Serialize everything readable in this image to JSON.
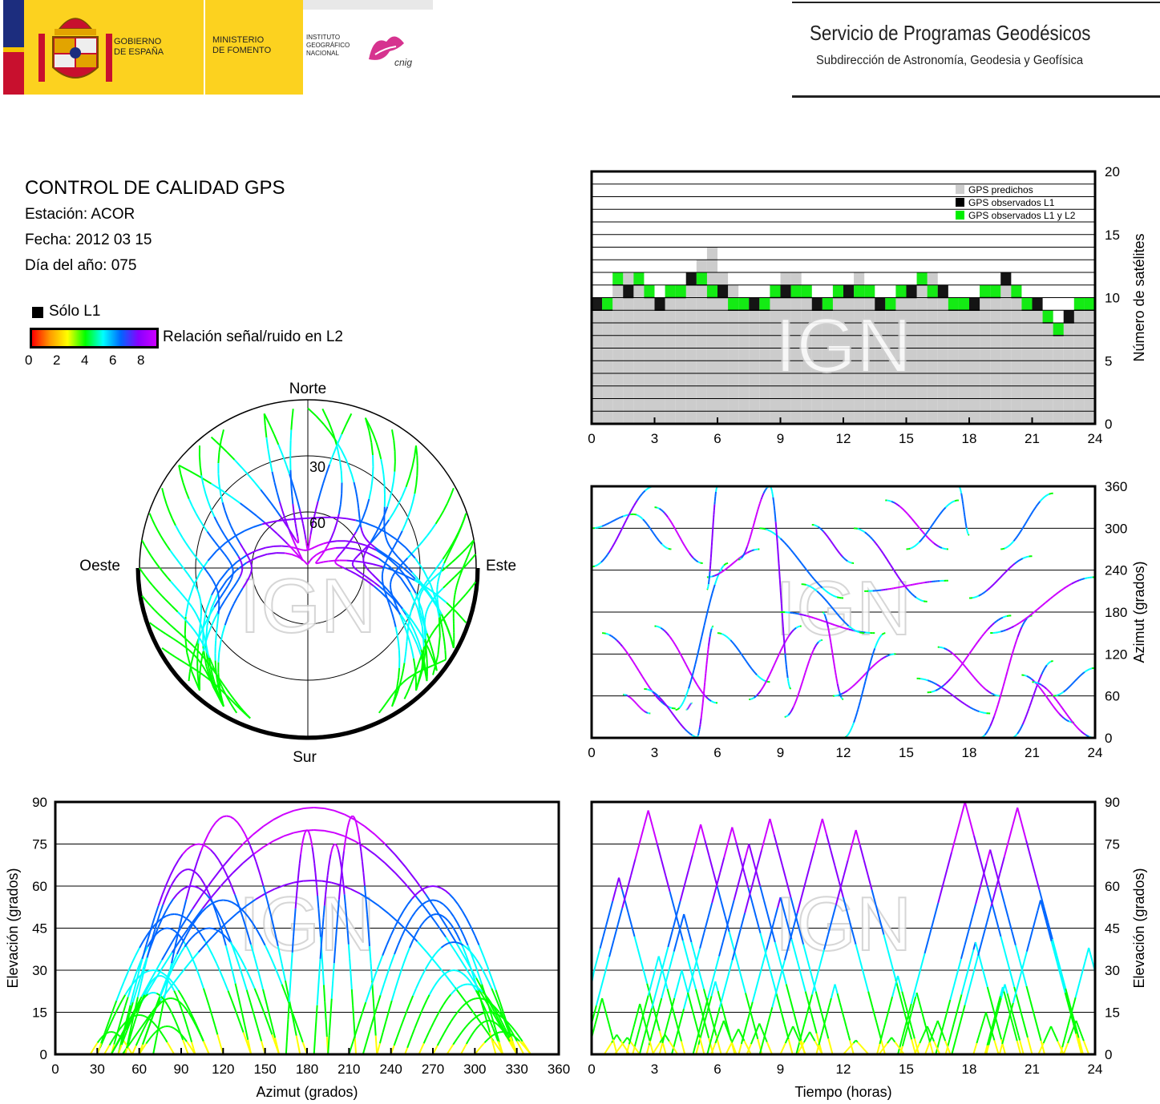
{
  "header": {
    "gov_line1": "GOBIERNO",
    "gov_line2": "DE ESPAÑA",
    "min_line1": "MINISTERIO",
    "min_line2": "DE FOMENTO",
    "ign_line1": "INSTITUTO",
    "ign_line2": "GEOGRÁFICO",
    "ign_line3": "NACIONAL",
    "cnig_logo_text": "cnig",
    "title": "Servicio de Programas Geodésicos",
    "subtitle": "Subdirección de Astronomía, Geodesia y Geofísica"
  },
  "info": {
    "title": "CONTROL DE CALIDAD GPS",
    "station": "Estación: ACOR",
    "date": "Fecha: 2012 03 15",
    "doy": "Día del año: 075"
  },
  "legend": {
    "only_l1": "Sólo L1",
    "snr_label": "Relación señal/ruido en L2",
    "snr_ticks": [
      "0",
      "2",
      "4",
      "6",
      "8"
    ],
    "snr_colors": [
      "#ff0000",
      "#ff9900",
      "#ffff00",
      "#00ff00",
      "#00ffff",
      "#0066ff",
      "#8800ff",
      "#cc00ff"
    ]
  },
  "watermark": "IGN",
  "chart_data": [
    {
      "type": "bar",
      "name": "satellite-count",
      "ylabel": "Número de satélites",
      "xlim": [
        0,
        24
      ],
      "ylim": [
        0,
        20
      ],
      "xticks": [
        "0",
        "3",
        "6",
        "9",
        "12",
        "15",
        "18",
        "21",
        "24"
      ],
      "yticks": [
        "0",
        "5",
        "10",
        "15",
        "20"
      ],
      "legend_position": "top-right",
      "legend": [
        "GPS predichos",
        "GPS observados L1",
        "GPS observados L1 y L2"
      ],
      "colors": {
        "predicted": "#cccccc",
        "l1": "#000000",
        "l1l2": "#00ee00"
      },
      "series": [
        {
          "name": "GPS predichos",
          "x": [
            0,
            0.5,
            1,
            1.5,
            2,
            2.5,
            3,
            3.5,
            4,
            4.5,
            5,
            5.5,
            6,
            6.5,
            7,
            7.5,
            8,
            8.5,
            9,
            9.5,
            10,
            10.5,
            11,
            11.5,
            12,
            12.5,
            13,
            13.5,
            14,
            14.5,
            15,
            15.5,
            16,
            16.5,
            17,
            17.5,
            18,
            18.5,
            19,
            19.5,
            20,
            20.5,
            21,
            21.5,
            22,
            22.5,
            23,
            23.5
          ],
          "values": [
            9,
            10,
            11,
            12,
            12,
            11,
            10,
            11,
            11,
            12,
            13,
            14,
            12,
            11,
            10,
            10,
            10,
            11,
            12,
            12,
            11,
            10,
            10,
            11,
            11,
            12,
            11,
            10,
            10,
            11,
            11,
            12,
            12,
            11,
            10,
            10,
            10,
            11,
            11,
            12,
            11,
            10,
            10,
            9,
            8,
            9,
            10,
            10
          ]
        },
        {
          "name": "GPS observados L1 y L2",
          "x": [
            0,
            0.5,
            1,
            1.5,
            2,
            2.5,
            3,
            3.5,
            4,
            4.5,
            5,
            5.5,
            6,
            6.5,
            7,
            7.5,
            8,
            8.5,
            9,
            9.5,
            10,
            10.5,
            11,
            11.5,
            12,
            12.5,
            13,
            13.5,
            14,
            14.5,
            15,
            15.5,
            16,
            16.5,
            17,
            17.5,
            18,
            18.5,
            19,
            19.5,
            20,
            20.5,
            21,
            21.5,
            22,
            22.5,
            23,
            23.5
          ],
          "values": [
            9,
            9,
            11,
            10,
            11,
            10,
            9,
            10,
            10,
            11,
            11,
            10,
            10,
            9,
            9,
            9,
            9,
            10,
            10,
            10,
            10,
            9,
            9,
            10,
            10,
            10,
            10,
            9,
            9,
            10,
            10,
            11,
            10,
            10,
            9,
            9,
            9,
            10,
            10,
            11,
            10,
            9,
            9,
            8,
            7,
            8,
            9,
            9
          ]
        }
      ]
    },
    {
      "type": "scatter",
      "name": "azimuth-vs-time",
      "ylabel": "Azimut (grados)",
      "xlim": [
        0,
        24
      ],
      "ylim": [
        0,
        360
      ],
      "xticks": [
        "0",
        "3",
        "6",
        "9",
        "12",
        "15",
        "18",
        "21",
        "24"
      ],
      "yticks": [
        "0",
        "60",
        "120",
        "180",
        "240",
        "300",
        "360"
      ],
      "series": [
        {
          "tracks": [
            [
              0,
              300,
              2,
              320
            ],
            [
              0,
              245,
              3,
              360
            ],
            [
              0.5,
              150,
              4,
              42
            ],
            [
              1.5,
              62,
              2.8,
              35
            ],
            [
              2,
              320,
              3.8,
              270
            ],
            [
              2.5,
              70,
              5.2,
              0
            ],
            [
              3,
              330,
              5.3,
              250
            ],
            [
              3,
              160,
              6,
              50
            ],
            [
              4,
              40,
              6.5,
              250
            ],
            [
              4.5,
              40,
              4.8,
              50
            ],
            [
              5,
              0,
              5.8,
              160
            ],
            [
              5.5,
              230,
              8,
              270
            ],
            [
              6,
              150,
              8.5,
              80
            ],
            [
              6,
              360,
              5.5,
              212
            ],
            [
              7,
              255,
              8.5,
              360
            ],
            [
              7.5,
              55,
              10,
              160
            ],
            [
              8,
              300,
              12,
              200
            ],
            [
              8.5,
              360,
              9.5,
              70
            ],
            [
              9,
              180,
              13.5,
              150
            ],
            [
              9.2,
              30,
              11,
              140
            ],
            [
              10,
              220,
              13,
              150
            ],
            [
              10.5,
              305,
              12.5,
              250
            ],
            [
              11,
              180,
              12,
              55
            ],
            [
              11.5,
              60,
              14.5,
              120
            ],
            [
              12,
              0,
              14,
              150
            ],
            [
              12.5,
              300,
              16,
              195
            ],
            [
              13,
              210,
              17,
              225
            ],
            [
              14,
              340,
              17,
              270
            ],
            [
              15,
              270,
              17.5,
              340
            ],
            [
              15.5,
              85,
              19,
              35
            ],
            [
              16,
              65,
              20,
              175
            ],
            [
              16.5,
              130,
              19.5,
              60
            ],
            [
              17.5,
              360,
              18,
              290
            ],
            [
              18,
              200,
              21,
              260
            ],
            [
              18.5,
              0,
              21,
              175
            ],
            [
              19,
              150,
              24,
              230
            ],
            [
              19.5,
              270,
              22,
              350
            ],
            [
              20,
              0,
              22,
              110
            ],
            [
              20.5,
              90,
              23,
              22
            ],
            [
              21,
              80,
              24,
              0
            ],
            [
              22,
              60,
              24,
              100
            ]
          ]
        }
      ]
    },
    {
      "type": "scatter",
      "name": "skyplot",
      "labels": {
        "north": "Norte",
        "south": "Sur",
        "east": "Este",
        "west": "Oeste",
        "ring30": "30",
        "ring60": "60"
      },
      "rings_elevation": [
        0,
        30,
        60
      ]
    },
    {
      "type": "line",
      "name": "elevation-vs-azimuth",
      "xlabel": "Azimut (grados)",
      "ylabel": "Elevación (grados)",
      "xlim": [
        0,
        360
      ],
      "ylim": [
        0,
        90
      ],
      "xticks": [
        "0",
        "30",
        "60",
        "90",
        "120",
        "150",
        "180",
        "210",
        "240",
        "270",
        "300",
        "330",
        "360"
      ],
      "yticks": [
        "0",
        "15",
        "30",
        "45",
        "60",
        "75",
        "90"
      ],
      "series": [
        {
          "arcs": [
            [
              30,
              110,
              30,
              80
            ],
            [
              40,
              120,
              45,
              110
            ],
            [
              45,
              150,
              60,
              240
            ],
            [
              50,
              140,
              66,
              280
            ],
            [
              40,
              330,
              88,
              200
            ],
            [
              30,
              140,
              50,
              70
            ],
            [
              40,
              330,
              80,
              180
            ],
            [
              45,
              160,
              75,
              320
            ],
            [
              55,
              110,
              20,
              285
            ],
            [
              60,
              100,
              10,
              80
            ],
            [
              48,
              320,
              62,
              200
            ],
            [
              60,
              180,
              55,
              360
            ],
            [
              70,
              175,
              85,
              145
            ],
            [
              25,
              55,
              8,
              43
            ],
            [
              35,
              85,
              14,
              65
            ],
            [
              45,
              95,
              22,
              75
            ],
            [
              50,
              100,
              28,
              80
            ],
            [
              60,
              160,
              45,
              115
            ],
            [
              165,
              195,
              80,
              180
            ],
            [
              195,
              230,
              85,
              215
            ],
            [
              185,
              215,
              75,
              200
            ],
            [
              210,
              330,
              60,
              270
            ],
            [
              220,
              320,
              55,
              275
            ],
            [
              230,
              315,
              50,
              280
            ],
            [
              240,
              330,
              40,
              290
            ],
            [
              250,
              320,
              30,
              285
            ],
            [
              260,
              330,
              25,
              295
            ],
            [
              270,
              335,
              20,
              305
            ],
            [
              280,
              340,
              15,
              312
            ],
            [
              290,
              330,
              12,
              318
            ],
            [
              300,
              340,
              8,
              320
            ]
          ]
        }
      ]
    },
    {
      "type": "line",
      "name": "elevation-vs-time",
      "xlabel": "Tiempo (horas)",
      "ylabel": "Elevación (grados)",
      "xlim": [
        0,
        24
      ],
      "ylim": [
        0,
        90
      ],
      "xticks": [
        "0",
        "3",
        "6",
        "9",
        "12",
        "15",
        "18",
        "21",
        "24"
      ],
      "yticks": [
        "0",
        "15",
        "30",
        "45",
        "60",
        "75",
        "90"
      ],
      "series": [
        {
          "peaks": [
            [
              1.3,
              63
            ],
            [
              2.7,
              87
            ],
            [
              3.2,
              35
            ],
            [
              4.4,
              50
            ],
            [
              5.2,
              82
            ],
            [
              5.9,
              26
            ],
            [
              6.7,
              81
            ],
            [
              7.5,
              75
            ],
            [
              8.5,
              84
            ],
            [
              9.0,
              56
            ],
            [
              11.0,
              84
            ],
            [
              12.6,
              80
            ],
            [
              17.8,
              90
            ],
            [
              18.3,
              40
            ],
            [
              19.0,
              73
            ],
            [
              19.7,
              25
            ],
            [
              20.3,
              88
            ],
            [
              21.4,
              55
            ],
            [
              1.2,
              7
            ],
            [
              1.7,
              6
            ],
            [
              3.5,
              7
            ],
            [
              6.3,
              12
            ],
            [
              7.0,
              9
            ],
            [
              8.0,
              11
            ],
            [
              9.6,
              10
            ],
            [
              10.4,
              8
            ],
            [
              12.6,
              5
            ],
            [
              14.3,
              6
            ],
            [
              16.0,
              10
            ],
            [
              16.5,
              12
            ],
            [
              18.8,
              15
            ],
            [
              19.6,
              24
            ],
            [
              21.9,
              10
            ],
            [
              23.1,
              12
            ],
            [
              0.5,
              20
            ],
            [
              2.3,
              18
            ],
            [
              4.3,
              30
            ],
            [
              11.6,
              25
            ],
            [
              14.6,
              28
            ],
            [
              15.5,
              22
            ],
            [
              23.7,
              38
            ]
          ]
        }
      ]
    }
  ]
}
